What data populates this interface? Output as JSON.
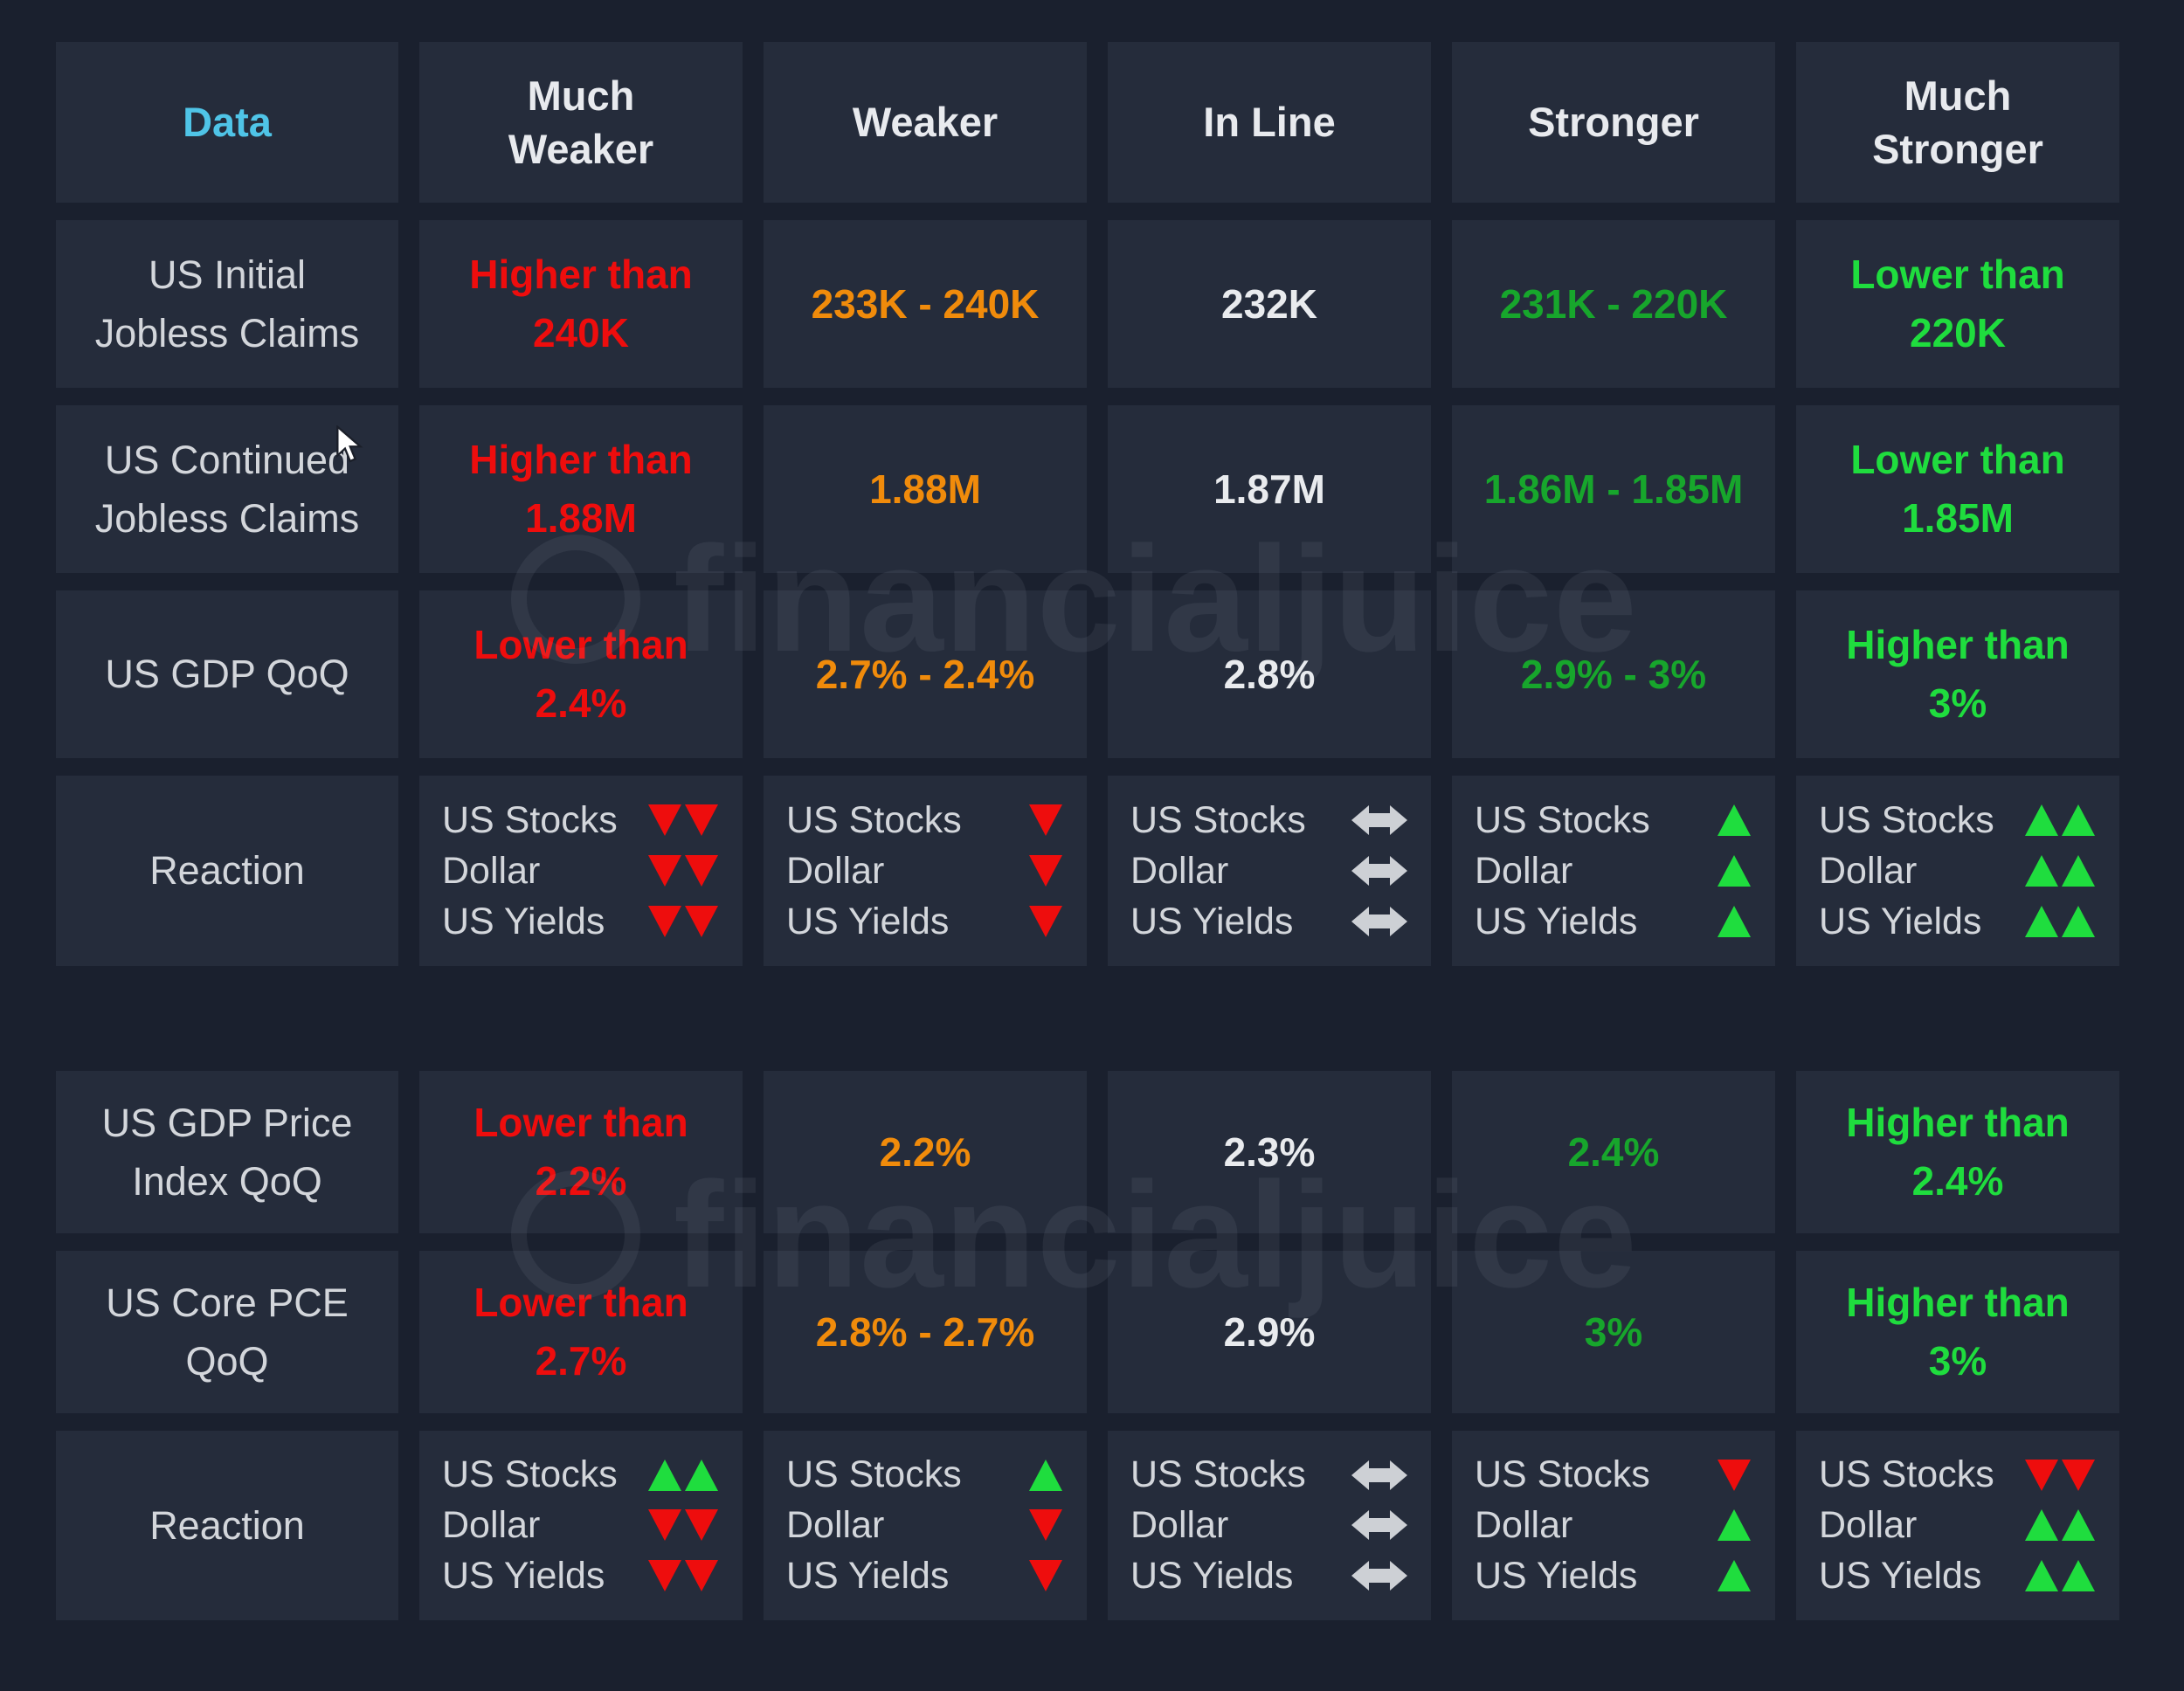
{
  "colors": {
    "page-bg": "#1a202e",
    "cell-bg": "#252c3b",
    "header-text": "#e8eaee",
    "label-text": "#d3d6db",
    "accent-cyan": "#4fc4e7",
    "red": "#ee0d0d",
    "orange": "#f08b0b",
    "green": "#17a62c",
    "bright-green": "#1fdd3e",
    "white-value": "#e9ebee",
    "gray-arrow": "#cdd0d5",
    "watermark": "rgba(216,223,237,0.07)"
  },
  "watermark": {
    "text": "financialjuice"
  },
  "header": {
    "cells": [
      "Data",
      "Much Weaker",
      "Weaker",
      "In Line",
      "Stronger",
      "Much Stronger"
    ]
  },
  "table1": {
    "rows": [
      {
        "label": "US Initial Jobless Claims",
        "cells": [
          {
            "text": "Higher than 240K",
            "tone": "red"
          },
          {
            "text": "233K - 240K",
            "tone": "orange"
          },
          {
            "text": "232K",
            "tone": "white"
          },
          {
            "text": "231K - 220K",
            "tone": "green"
          },
          {
            "text": "Lower than 220K",
            "tone": "bright-green"
          }
        ]
      },
      {
        "label": "US Continued Jobless Claims",
        "cells": [
          {
            "text": "Higher than 1.88M",
            "tone": "red"
          },
          {
            "text": "1.88M",
            "tone": "orange"
          },
          {
            "text": "1.87M",
            "tone": "white"
          },
          {
            "text": "1.86M - 1.85M",
            "tone": "green"
          },
          {
            "text": "Lower than 1.85M",
            "tone": "bright-green"
          }
        ]
      },
      {
        "label": "US GDP QoQ",
        "cells": [
          {
            "text": "Lower than 2.4%",
            "tone": "red"
          },
          {
            "text": "2.7% - 2.4%",
            "tone": "orange"
          },
          {
            "text": "2.8%",
            "tone": "white"
          },
          {
            "text": "2.9% - 3%",
            "tone": "green"
          },
          {
            "text": "Higher than 3%",
            "tone": "bright-green"
          }
        ]
      }
    ],
    "reaction": {
      "label": "Reaction",
      "assets": [
        "US Stocks",
        "Dollar",
        "US Yields"
      ],
      "columns": [
        {
          "arrows": [
            "down2",
            "down2",
            "down2"
          ]
        },
        {
          "arrows": [
            "down1",
            "down1",
            "down1"
          ]
        },
        {
          "arrows": [
            "flat",
            "flat",
            "flat"
          ]
        },
        {
          "arrows": [
            "up1",
            "up1",
            "up1"
          ]
        },
        {
          "arrows": [
            "up2",
            "up2",
            "up2"
          ]
        }
      ]
    }
  },
  "table2": {
    "rows": [
      {
        "label": "US GDP Price Index QoQ",
        "cells": [
          {
            "text": "Lower than 2.2%",
            "tone": "red"
          },
          {
            "text": "2.2%",
            "tone": "orange"
          },
          {
            "text": "2.3%",
            "tone": "white"
          },
          {
            "text": "2.4%",
            "tone": "green"
          },
          {
            "text": "Higher than 2.4%",
            "tone": "bright-green"
          }
        ]
      },
      {
        "label": "US Core PCE QoQ",
        "cells": [
          {
            "text": "Lower than 2.7%",
            "tone": "red"
          },
          {
            "text": "2.8% - 2.7%",
            "tone": "orange"
          },
          {
            "text": "2.9%",
            "tone": "white"
          },
          {
            "text": "3%",
            "tone": "green"
          },
          {
            "text": "Higher than 3%",
            "tone": "bright-green"
          }
        ]
      }
    ],
    "reaction": {
      "label": "Reaction",
      "assets": [
        "US Stocks",
        "Dollar",
        "US Yields"
      ],
      "columns": [
        {
          "arrows": [
            "up2",
            "down2",
            "down2"
          ]
        },
        {
          "arrows": [
            "up1",
            "down1",
            "down1"
          ]
        },
        {
          "arrows": [
            "flat",
            "flat",
            "flat"
          ]
        },
        {
          "arrows": [
            "down1",
            "up1",
            "up1"
          ]
        },
        {
          "arrows": [
            "down2",
            "up2",
            "up2"
          ]
        }
      ]
    }
  }
}
